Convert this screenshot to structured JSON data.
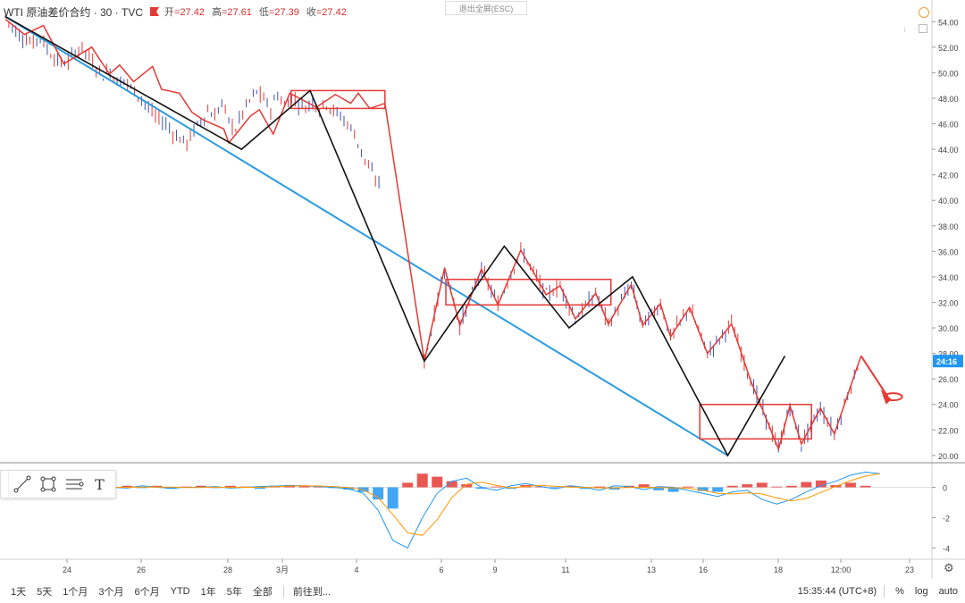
{
  "header": {
    "symbol": "WTI 原油差价合约 · 30 · TVC",
    "open_label": "开",
    "open_value": "=27.42",
    "high_label": "高",
    "high_value": "=27.61",
    "low_label": "低",
    "low_value": "=27.39",
    "close_label": "收",
    "close_value": "=27.42",
    "exit_fullscreen": "退出全屏(ESC)"
  },
  "chart_data": {
    "type": "line",
    "title": "WTI 原油差价合约 · 30 · TVC",
    "price_axis_ticks": [
      "54.00",
      "52.00",
      "50.00",
      "48.00",
      "46.00",
      "44.00",
      "42.00",
      "40.00",
      "38.00",
      "36.00",
      "34.00",
      "32.00",
      "30.00",
      "28.00",
      "26.00",
      "24.00",
      "22.00",
      "20.00"
    ],
    "price_range": [
      19.5,
      55.0
    ],
    "current_price_label": "24:16",
    "indicator_ticks": [
      "0",
      "-2",
      "-4"
    ],
    "indicator_range": [
      -4.5,
      1.5
    ],
    "time_ticks": [
      "24",
      "26",
      "28",
      "3月",
      "4",
      "6",
      "9",
      "11",
      "13",
      "16",
      "18",
      "12:00",
      "23"
    ],
    "colors": {
      "candle_down": "#3f51b5",
      "candle_up": "#e53935",
      "red_zigzag": "#e53935",
      "black_zigzag": "#111111",
      "trendline": "#2c9be0",
      "price_badge": "#2196f3"
    },
    "price_path": [
      54.4,
      53.6,
      53.0,
      52.6,
      52.3,
      52.9,
      51.8,
      51.2,
      50.7,
      50.9,
      51.6,
      52.0,
      51.2,
      50.4,
      49.8,
      50.2,
      49.3,
      49.5,
      48.8,
      48.3,
      47.6,
      46.8,
      46.3,
      46.0,
      45.3,
      44.8,
      44.5,
      45.5,
      46.2,
      47.0,
      46.6,
      47.6,
      46.2,
      45.6,
      46.9,
      47.8,
      48.5,
      47.9,
      47.2,
      48.3,
      47.4,
      48.1,
      47.6,
      47.3,
      47.8,
      47.2,
      47.6,
      47.0,
      46.6,
      46.0,
      45.2,
      43.8,
      42.6,
      41.6,
      41.2
    ],
    "red_zigzag": [
      [
        0,
        54.2
      ],
      [
        1.5,
        53.0
      ],
      [
        3.0,
        53.7
      ],
      [
        4.6,
        50.7
      ],
      [
        6.8,
        52.0
      ],
      [
        8.2,
        49.9
      ],
      [
        9.0,
        50.6
      ],
      [
        10.1,
        49.3
      ],
      [
        11.6,
        50.5
      ],
      [
        12.3,
        48.7
      ],
      [
        13.7,
        48.4
      ],
      [
        14.7,
        46.9
      ],
      [
        15.6,
        46.3
      ],
      [
        17.2,
        45.6
      ],
      [
        17.6,
        44.5
      ],
      [
        19.3,
        46.6
      ],
      [
        20.0,
        47.1
      ],
      [
        21.1,
        45.2
      ],
      [
        22.4,
        48.4
      ],
      [
        24.5,
        47.3
      ],
      [
        26.0,
        48.3
      ],
      [
        27.2,
        47.6
      ],
      [
        27.8,
        48.4
      ],
      [
        28.7,
        47.2
      ],
      [
        29.9,
        47.6
      ],
      [
        33.0,
        27.4
      ],
      [
        34.6,
        34.7
      ],
      [
        35.8,
        30.2
      ],
      [
        37.5,
        34.6
      ],
      [
        38.8,
        31.8
      ],
      [
        40.6,
        36.1
      ],
      [
        42.6,
        32.6
      ],
      [
        43.7,
        33.3
      ],
      [
        44.9,
        30.7
      ],
      [
        46.5,
        32.7
      ],
      [
        47.5,
        30.3
      ],
      [
        49.3,
        33.4
      ],
      [
        50.2,
        30.2
      ],
      [
        51.6,
        31.9
      ],
      [
        52.4,
        29.3
      ],
      [
        53.9,
        31.6
      ],
      [
        55.3,
        28.0
      ],
      [
        57.2,
        30.3
      ],
      [
        58.7,
        25.9
      ],
      [
        60.9,
        20.5
      ],
      [
        61.8,
        23.9
      ],
      [
        62.7,
        20.9
      ],
      [
        64.2,
        23.7
      ],
      [
        65.3,
        21.7
      ],
      [
        67.4,
        27.8
      ]
    ],
    "black_zigzag": [
      [
        0,
        54.4
      ],
      [
        18.6,
        44.0
      ],
      [
        24.0,
        48.6
      ],
      [
        33.0,
        27.4
      ],
      [
        39.3,
        36.4
      ],
      [
        44.4,
        30.0
      ],
      [
        49.4,
        34.0
      ],
      [
        56.9,
        20.0
      ],
      [
        61.4,
        27.8
      ]
    ],
    "trendline": [
      [
        0,
        54.4
      ],
      [
        56.9,
        20.0
      ]
    ],
    "boxes": [
      {
        "x": [
          22.5,
          29.9
        ],
        "y": [
          47.2,
          48.6
        ]
      },
      {
        "x": [
          34.7,
          47.7
        ],
        "y": [
          31.8,
          33.8
        ]
      },
      {
        "x": [
          54.7,
          63.5
        ],
        "y": [
          21.3,
          24.0
        ]
      }
    ],
    "indicator": {
      "macd": [
        0.0,
        0.05,
        -0.05,
        0.0,
        0.08,
        -0.05,
        0.05,
        0.0,
        -0.05,
        0.1,
        0.0,
        -0.05,
        0.0,
        0.0,
        0.05,
        -0.05,
        0.0,
        0.05,
        0.08,
        0.12,
        0.1,
        0.05,
        0.0,
        -0.1,
        -0.4,
        -1.5,
        -3.5,
        -4.0,
        -2.0,
        -0.4,
        0.4,
        0.6,
        0.0,
        -0.2,
        0.1,
        0.25,
        0.05,
        -0.1,
        0.1,
        0.0,
        -0.2,
        0.1,
        0.05,
        -0.15,
        0.05,
        0.0,
        -0.2,
        -0.4,
        -0.6,
        -0.3,
        -0.2,
        -0.8,
        -1.1,
        -0.8,
        -0.3,
        0.1,
        0.4,
        0.8,
        1.0,
        0.9
      ],
      "hist": [
        0.05,
        -0.05,
        0.1,
        -0.05,
        0.1,
        -0.1,
        0.05,
        0.0,
        0.1,
        -0.05,
        0.1,
        -0.1,
        0.05,
        0.1,
        -0.05,
        0.1,
        0.05,
        -0.1,
        0.1,
        0.15,
        0.1,
        0.05,
        -0.05,
        -0.15,
        -0.3,
        -0.8,
        -1.4,
        0.3,
        0.9,
        0.7,
        0.4,
        0.2,
        -0.1,
        0.05,
        -0.1,
        0.15,
        0.05,
        -0.05,
        0.1,
        -0.1,
        0.05,
        -0.15,
        0.1,
        0.2,
        -0.2,
        -0.3,
        0.05,
        -0.25,
        -0.3,
        0.1,
        0.2,
        0.3,
        0.05,
        0.1,
        0.35,
        0.45,
        0.15,
        0.3,
        0.1,
        0.0
      ]
    },
    "grid": false
  },
  "toolbox": {
    "tools": [
      "trendline-tool",
      "rectangle-tool",
      "parallel-channel-tool",
      "text-tool"
    ],
    "text_glyph": "T"
  },
  "bottom_bar": {
    "ranges": [
      "1天",
      "5天",
      "1个月",
      "3个月",
      "6个月",
      "YTD",
      "1年",
      "5年",
      "全部"
    ],
    "goto": "前往到...",
    "clock": "15:35:44 (UTC+8)",
    "percent": "%",
    "log": "log",
    "auto": "auto"
  }
}
